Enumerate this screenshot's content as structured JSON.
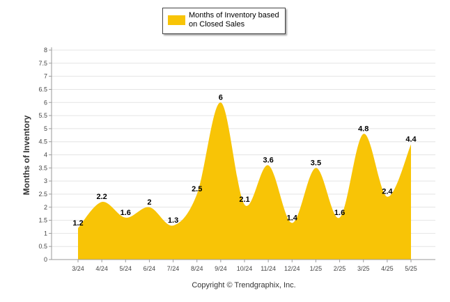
{
  "chart_data": {
    "type": "area",
    "title": "",
    "xlabel": "",
    "ylabel": "Months of Inventory",
    "ylim": [
      0,
      8
    ],
    "yticks": [
      "0",
      "0.5",
      "1",
      "1.5",
      "2",
      "2.5",
      "3",
      "3.5",
      "4",
      "4.5",
      "5",
      "5.5",
      "6",
      "6.5",
      "7",
      "7.5",
      "8"
    ],
    "grid": true,
    "legend_position": "top-center",
    "categories": [
      "3/24",
      "4/24",
      "5/24",
      "6/24",
      "7/24",
      "8/24",
      "9/24",
      "10/24",
      "11/24",
      "12/24",
      "1/25",
      "2/25",
      "3/25",
      "4/25",
      "5/25"
    ],
    "series": [
      {
        "name": "Months of Inventory based on Closed Sales",
        "color": "#F8C406",
        "values": [
          1.2,
          2.2,
          1.6,
          2,
          1.3,
          2.5,
          6,
          2.1,
          3.6,
          1.4,
          3.5,
          1.6,
          4.8,
          2.4,
          4.4
        ],
        "labels": [
          "1.2",
          "2.2",
          "1.6",
          "2",
          "1.3",
          "2.5",
          "6",
          "2.1",
          "3.6",
          "1.4",
          "3.5",
          "1.6",
          "4.8",
          "2.4",
          "4.4"
        ]
      }
    ]
  },
  "legend": {
    "label": "Months of Inventory based on Closed Sales",
    "swatch_color": "#F8C406"
  },
  "footer": {
    "copyright": "Copyright © Trendgraphix, Inc."
  }
}
